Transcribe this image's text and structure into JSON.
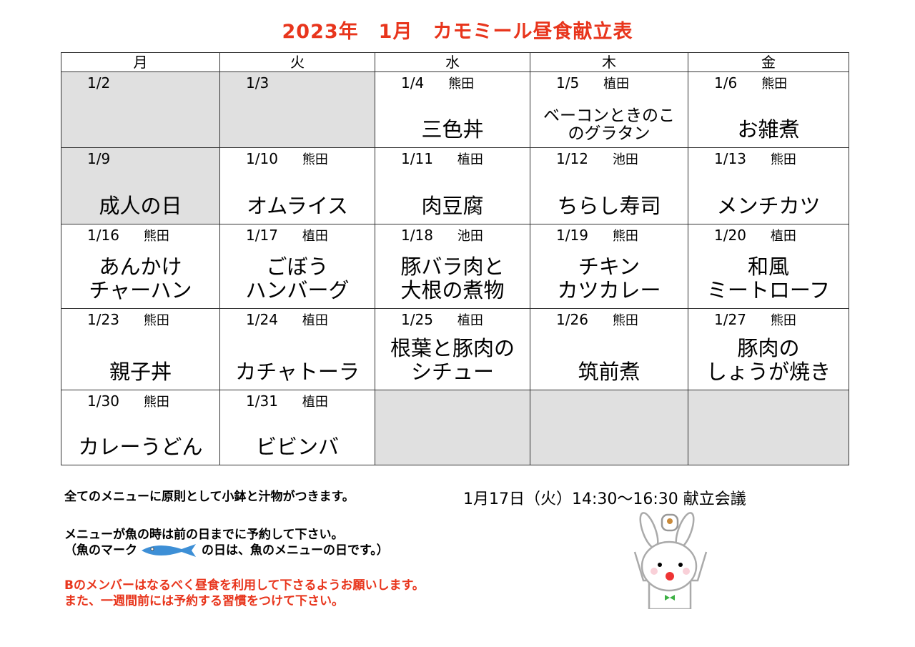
{
  "title": {
    "year": "2023年",
    "month": "1月",
    "name": "カモミール昼食献立表"
  },
  "weekdays": [
    "月",
    "火",
    "水",
    "木",
    "金"
  ],
  "weeks": [
    [
      {
        "date": "1/2",
        "staff": "",
        "menu": [],
        "grey": true
      },
      {
        "date": "1/3",
        "staff": "",
        "menu": [],
        "grey": true
      },
      {
        "date": "1/4",
        "staff": "熊田",
        "menu": [
          "三色丼"
        ]
      },
      {
        "date": "1/5",
        "staff": "植田",
        "menu": [
          "ベーコンときのこ",
          "のグラタン"
        ],
        "small": true
      },
      {
        "date": "1/6",
        "staff": "熊田",
        "menu": [
          "お雑煮"
        ]
      }
    ],
    [
      {
        "date": "1/9",
        "staff": "",
        "menu": [
          "成人の日"
        ],
        "grey": true
      },
      {
        "date": "1/10",
        "staff": "熊田",
        "menu": [
          "オムライス"
        ]
      },
      {
        "date": "1/11",
        "staff": "植田",
        "menu": [
          "肉豆腐"
        ]
      },
      {
        "date": "1/12",
        "staff": "池田",
        "menu": [
          "ちらし寿司"
        ]
      },
      {
        "date": "1/13",
        "staff": "熊田",
        "menu": [
          "メンチカツ"
        ]
      }
    ],
    [
      {
        "date": "1/16",
        "staff": "熊田",
        "menu": [
          "あんかけ",
          "チャーハン"
        ]
      },
      {
        "date": "1/17",
        "staff": "植田",
        "menu": [
          "ごぼう",
          "ハンバーグ"
        ]
      },
      {
        "date": "1/18",
        "staff": "池田",
        "menu": [
          "豚バラ肉と",
          "大根の煮物"
        ]
      },
      {
        "date": "1/19",
        "staff": "熊田",
        "menu": [
          "チキン",
          "カツカレー"
        ]
      },
      {
        "date": "1/20",
        "staff": "植田",
        "menu": [
          "和風",
          "ミートローフ"
        ]
      }
    ],
    [
      {
        "date": "1/23",
        "staff": "熊田",
        "menu": [
          "親子丼"
        ]
      },
      {
        "date": "1/24",
        "staff": "植田",
        "menu": [
          "カチャトーラ"
        ]
      },
      {
        "date": "1/25",
        "staff": "植田",
        "menu": [
          "根葉と豚肉の",
          "シチュー"
        ]
      },
      {
        "date": "1/26",
        "staff": "熊田",
        "menu": [
          "筑前煮"
        ]
      },
      {
        "date": "1/27",
        "staff": "熊田",
        "menu": [
          "豚肉の",
          "しょうが焼き"
        ]
      }
    ],
    [
      {
        "date": "1/30",
        "staff": "熊田",
        "menu": [
          "カレーうどん"
        ]
      },
      {
        "date": "1/31",
        "staff": "植田",
        "menu": [
          "ビビンバ"
        ]
      },
      {
        "date": "",
        "staff": "",
        "menu": [],
        "grey": true
      },
      {
        "date": "",
        "staff": "",
        "menu": [],
        "grey": true
      },
      {
        "date": "",
        "staff": "",
        "menu": [],
        "grey": true
      }
    ]
  ],
  "notes": {
    "line1": "全てのメニューに原則として小鉢と汁物がつきます。",
    "line2": "メニューが魚の時は前の日までに予約して下さい。",
    "line3a": "（魚のマーク",
    "line3b": "の日は、魚のメニューの日です。）",
    "line4": "Bのメンバーはなるべく昼食を利用して下さるようお願いします。",
    "line5": "また、一週間前には予約する習慣をつけて下さい。"
  },
  "meeting": "1月17日（火）14:30～16:30 献立会議",
  "colors": {
    "accent": "#e8351c",
    "grey_cell": "#e0e0e0",
    "fish": "#3d8fd6"
  }
}
